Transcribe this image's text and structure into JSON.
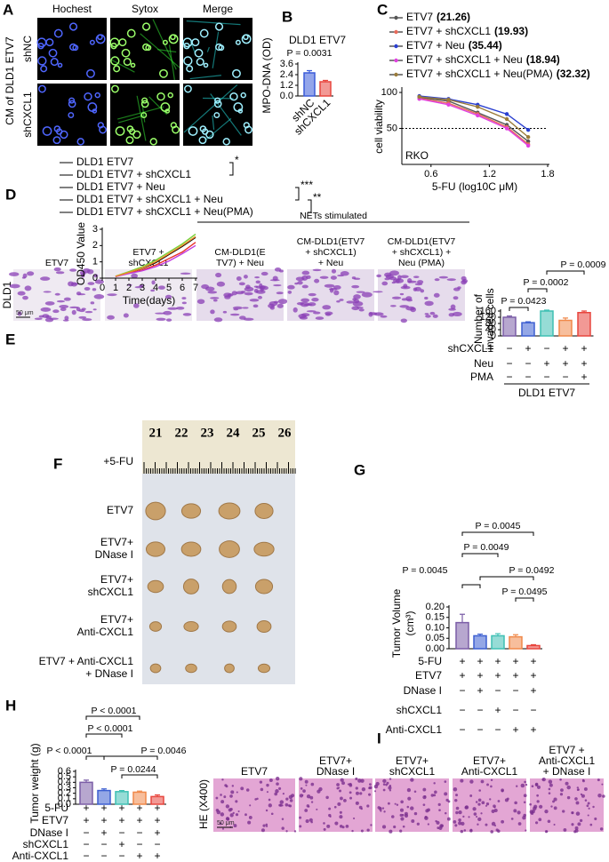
{
  "panel_A": {
    "letter": "A",
    "columns": [
      "Hochest",
      "Sytox",
      "Merge"
    ],
    "side_label": "CM of DLD1 ETV7",
    "rows": [
      "shNC",
      "shCXCL1"
    ]
  },
  "panel_E_images": {
    "letter": "E",
    "header": "NETs stimulated",
    "row_label": "DLD1",
    "scale_bar": "50 μm",
    "images": [
      [
        "ETV7"
      ],
      [
        "ETV7 +",
        "shCXCL1"
      ],
      [
        "CM-DLD1(E",
        "TV7) + Neu"
      ],
      [
        "CM-DLD1(ETV7",
        "+ shCXCL1)",
        "+ Neu"
      ],
      [
        "CM-DLD1(ETV7",
        "+ shCXCL1) +",
        "Neu (PMA)"
      ]
    ]
  },
  "panel_F": {
    "letter": "F",
    "treatment": "+5-FU",
    "ruler": [
      "21",
      "22",
      "23",
      "24",
      "25",
      "26"
    ],
    "rows": [
      [
        "ETV7"
      ],
      [
        "ETV7+",
        "DNase I"
      ],
      [
        "ETV7+",
        "shCXCL1"
      ],
      [
        "ETV7+",
        "Anti-CXCL1"
      ],
      [
        "ETV7 + Anti-CXCL1",
        "+ DNase I"
      ]
    ]
  },
  "panel_I": {
    "letter": "I",
    "row_label": "HE (X400)",
    "scale_bar": "50 μm",
    "images": [
      [
        "ETV7"
      ],
      [
        "ETV7+",
        "DNase I"
      ],
      [
        "ETV7+",
        "shCXCL1"
      ],
      [
        "ETV7+",
        "Anti-CXCL1"
      ],
      [
        "ETV7 +",
        "Anti-CXCL1",
        "+ DNase I"
      ]
    ]
  },
  "chart_data": [
    {
      "type": "bar",
      "panel": "B",
      "title": "DLD1 ETV7",
      "annotations": [
        "P = 0.0031"
      ],
      "ylabel": [
        "MPO-DNA (OD)"
      ],
      "categories": [
        "shNC",
        "shCXCL1"
      ],
      "values": [
        2.6,
        1.6
      ],
      "errors": [
        0.25,
        0.15
      ],
      "colors": [
        "#3a5bd9",
        "#e8463e"
      ],
      "ylim": [
        0,
        3.6
      ],
      "yticks": [
        {
          "value": 0,
          "label": "0.0"
        },
        1.2,
        2.4,
        3.6
      ]
    },
    {
      "type": "line",
      "panel": "C",
      "ylabel": "cell viability",
      "xlabel": "5-FU (log10C μM)",
      "annotation": "RKO",
      "x": [
        0.48,
        0.78,
        1.08,
        1.38,
        1.6
      ],
      "xlim": [
        0.3,
        1.8
      ],
      "xticks": [
        0.6,
        1.2,
        1.8
      ],
      "ylim": [
        0,
        105
      ],
      "yticks": [
        50,
        100
      ],
      "reference_line": 50,
      "series": [
        {
          "name": "ETV7",
          "ic50_label": "(21.26)",
          "color": "#555555",
          "values": [
            93,
            88,
            72,
            55,
            32
          ]
        },
        {
          "name": "ETV7 + shCXCL1",
          "ic50_label": "(19.93)",
          "color": "#e86a5a",
          "values": [
            92,
            85,
            70,
            52,
            28
          ]
        },
        {
          "name": "ETV7 + Neu",
          "ic50_label": "(35.44)",
          "color": "#2a3fd0",
          "values": [
            95,
            91,
            83,
            70,
            48
          ]
        },
        {
          "name": "ETV7 + shCXCL1 + Neu",
          "ic50_label": "(18.94)",
          "color": "#e040e0",
          "values": [
            91,
            83,
            68,
            50,
            26
          ]
        },
        {
          "name": "ETV7 + shCXCL1 + Neu(PMA)",
          "ic50_label": "(32.32)",
          "color": "#9a7b3a",
          "values": [
            94,
            90,
            80,
            63,
            38
          ]
        }
      ]
    },
    {
      "type": "line",
      "panel": "D",
      "ylabel": "OD450 Value",
      "xlabel": "Time(days)",
      "x": [
        1,
        2,
        3,
        4,
        5,
        6,
        7
      ],
      "xlim": [
        0,
        7
      ],
      "xticks": [
        0,
        1,
        2,
        3,
        4,
        5,
        6,
        7
      ],
      "ylim": [
        0,
        3
      ],
      "yticks": [
        0,
        1,
        2,
        3
      ],
      "significance": [
        "*",
        "***",
        "**"
      ],
      "series": [
        {
          "name": "DLD1 ETV7",
          "color": "#000000",
          "values": [
            0.1,
            0.35,
            0.6,
            0.95,
            1.45,
            1.95,
            2.5
          ]
        },
        {
          "name": "DLD1 ETV7 + shCXCL1",
          "color": "#e8302a",
          "values": [
            0.1,
            0.3,
            0.5,
            0.8,
            1.2,
            1.6,
            2.2
          ]
        },
        {
          "name": "DLD1 ETV7 + Neu",
          "color": "#7ad13a",
          "values": [
            0.12,
            0.4,
            0.7,
            1.1,
            1.6,
            2.1,
            2.7
          ]
        },
        {
          "name": "DLD1 ETV7 + shCXCL1 + Neu",
          "color": "#c03ce0",
          "values": [
            0.1,
            0.28,
            0.45,
            0.7,
            1.05,
            1.5,
            2.0
          ]
        },
        {
          "name": "DLD1 ETV7 + shCXCL1 + Neu(PMA)",
          "color": "#f08a2a",
          "values": [
            0.11,
            0.35,
            0.62,
            1.0,
            1.5,
            2.0,
            2.55
          ]
        }
      ]
    },
    {
      "type": "bar",
      "ylabel": [
        "Number of",
        "invaded cells"
      ],
      "annotations": [
        "P = 0.0423",
        "P = 0.0002",
        "P = 0.0009"
      ],
      "values": [
        120,
        85,
        160,
        100,
        150
      ],
      "errors": [
        8,
        6,
        6,
        15,
        10
      ],
      "colors": [
        "#7b5ea7",
        "#3d5fd1",
        "#3fc0b4",
        "#f0894a",
        "#e8463e"
      ],
      "ylim": [
        0,
        160
      ],
      "yticks": [
        0,
        40,
        80,
        120,
        160
      ],
      "conditions": [
        {
          "name": "shCXCL1",
          "signs": [
            "−",
            "+",
            "−",
            "+",
            "+"
          ]
        },
        {
          "name": "Neu",
          "signs": [
            "−",
            "−",
            "+",
            "+",
            "+"
          ]
        },
        {
          "name": "PMA",
          "signs": [
            "−",
            "−",
            "−",
            "−",
            "+"
          ]
        }
      ],
      "group_label": "DLD1 ETV7"
    },
    {
      "type": "bar",
      "panel": "G",
      "ylabel": [
        "Tumor Volume",
        "(cm³)"
      ],
      "annotations": [
        "P = 0.0045",
        "P = 0.0049",
        "P = 0.0045",
        "P = 0.0492",
        "P = 0.0495"
      ],
      "values": [
        0.125,
        0.062,
        0.062,
        0.057,
        0.015
      ],
      "errors": [
        0.04,
        0.008,
        0.01,
        0.01,
        0.004
      ],
      "colors": [
        "#7b5ea7",
        "#3d5fd1",
        "#3fc0b4",
        "#f0894a",
        "#e8463e"
      ],
      "ylim": [
        0,
        0.2
      ],
      "yticks": [
        {
          "value": 0,
          "label": "0.00"
        },
        0.05,
        {
          "value": 0.1,
          "label": "0.10"
        },
        0.15,
        {
          "value": 0.2,
          "label": "0.20"
        }
      ],
      "conditions": [
        {
          "name": "5-FU",
          "signs": [
            "+",
            "+",
            "+",
            "+",
            "+"
          ]
        },
        {
          "name": "ETV7",
          "signs": [
            "+",
            "+",
            "+",
            "+",
            "+"
          ]
        },
        {
          "name": "DNase I",
          "signs": [
            "−",
            "+",
            "−",
            "−",
            "+"
          ]
        },
        {
          "name": "shCXCL1",
          "signs": [
            "−",
            "−",
            "+",
            "−",
            "−"
          ]
        },
        {
          "name": "Anti-CXCL1",
          "signs": [
            "−",
            "−",
            "−",
            "+",
            "+"
          ]
        }
      ]
    },
    {
      "type": "bar",
      "panel": "H",
      "ylabel": [
        "Tumor weight (g)"
      ],
      "annotations": [
        "P < 0.0001",
        "P < 0.0001",
        "P < 0.0001",
        "P = 0.0046",
        "P = 0.0244"
      ],
      "values": [
        0.4,
        0.25,
        0.23,
        0.22,
        0.14
      ],
      "errors": [
        0.04,
        0.03,
        0.02,
        0.02,
        0.03
      ],
      "colors": [
        "#7b5ea7",
        "#3d5fd1",
        "#3fc0b4",
        "#f0894a",
        "#e8463e"
      ],
      "ylim": [
        0,
        0.6
      ],
      "yticks": [
        {
          "value": 0,
          "label": "0.0"
        },
        0.1,
        0.2,
        0.3,
        0.4,
        0.5,
        0.6
      ],
      "conditions": [
        {
          "name": "5-FU",
          "signs": [
            "+",
            "+",
            "+",
            "+",
            "+"
          ]
        },
        {
          "name": "ETV7",
          "signs": [
            "+",
            "+",
            "+",
            "+",
            "+"
          ]
        },
        {
          "name": "DNase I",
          "signs": [
            "−",
            "+",
            "−",
            "−",
            "+"
          ]
        },
        {
          "name": "shCXCL1",
          "signs": [
            "−",
            "−",
            "+",
            "−",
            "−"
          ]
        },
        {
          "name": "Anti-CXCL1",
          "signs": [
            "−",
            "−",
            "−",
            "+",
            "+"
          ]
        }
      ]
    }
  ]
}
